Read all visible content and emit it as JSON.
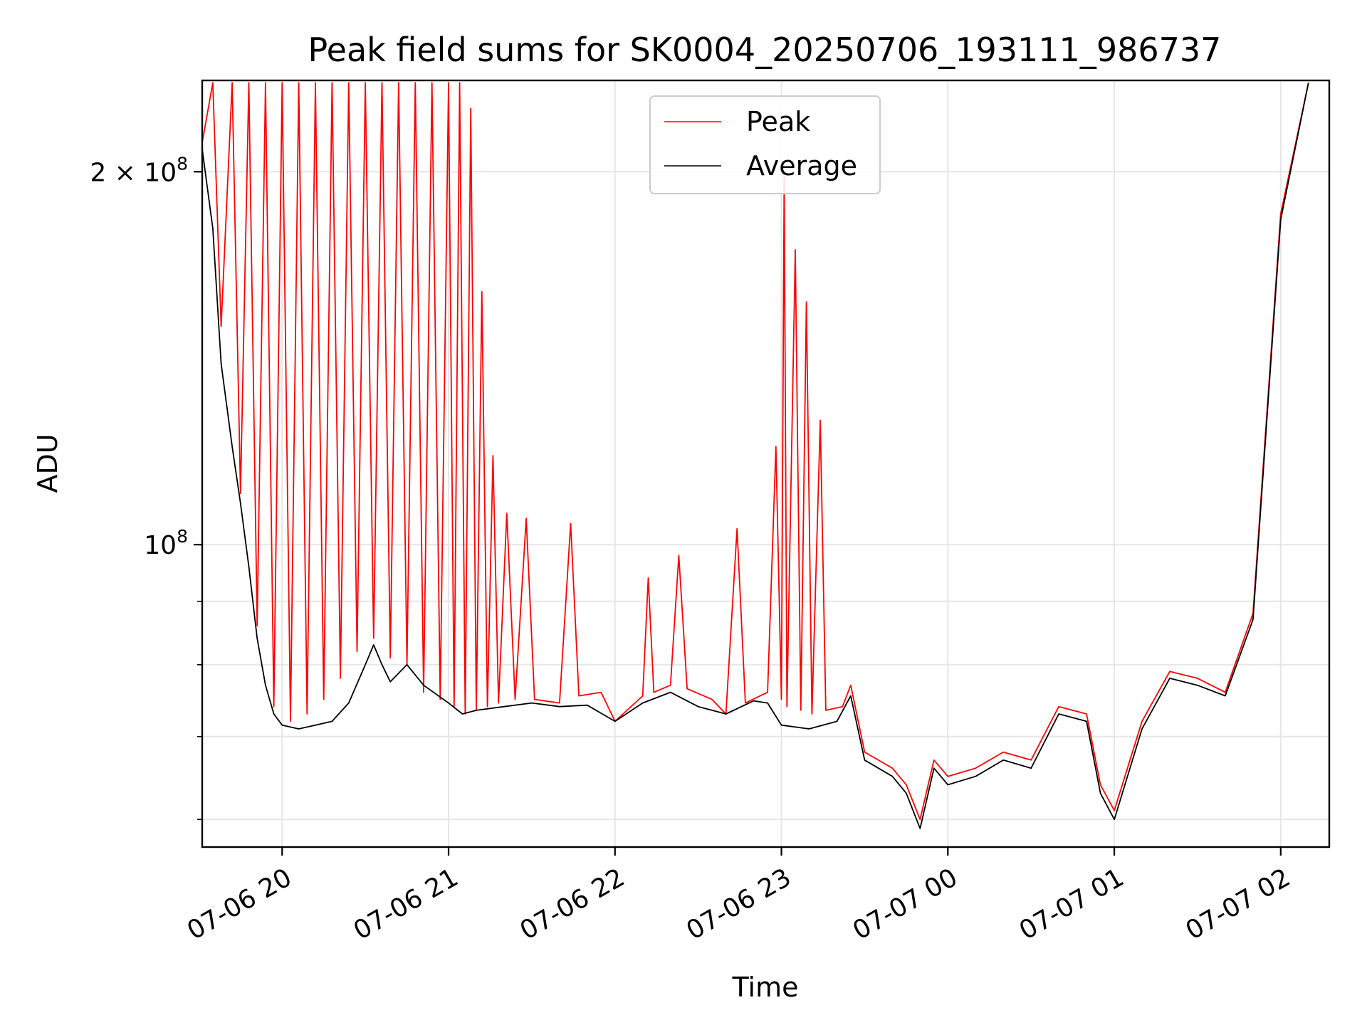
{
  "chart_data": {
    "type": "line",
    "title": "Peak field sums for SK0004_20250706_193111_986737",
    "xlabel": "Time",
    "ylabel": "ADU",
    "y_scale": "log",
    "ylim": [
      57000000,
      237000000
    ],
    "xlim": [
      "2025-07-06 19:31:11",
      "2025-07-07 02:17:30"
    ],
    "grid": true,
    "legend_position": "upper center",
    "x_ticks": [
      {
        "t": "2025-07-06 20:00",
        "label": "07-06 20"
      },
      {
        "t": "2025-07-06 21:00",
        "label": "07-06 21"
      },
      {
        "t": "2025-07-06 22:00",
        "label": "07-06 22"
      },
      {
        "t": "2025-07-06 23:00",
        "label": "07-06 23"
      },
      {
        "t": "2025-07-07 00:00",
        "label": "07-07 00"
      },
      {
        "t": "2025-07-07 01:00",
        "label": "07-07 01"
      },
      {
        "t": "2025-07-07 02:00",
        "label": "07-07 02"
      }
    ],
    "y_major_ticks": [
      {
        "value": 100000000,
        "base": "10",
        "exp": "8"
      },
      {
        "value": 200000000,
        "base": "2 × 10",
        "exp": "8"
      }
    ],
    "y_minor_ticks": [
      60000000,
      70000000,
      80000000,
      90000000
    ],
    "series": [
      {
        "name": "Peak",
        "color": "#ff0000",
        "points": [
          [
            "2025-07-06 19:31",
            210000000
          ],
          [
            "2025-07-06 19:35",
            236000000
          ],
          [
            "2025-07-06 19:38",
            150000000
          ],
          [
            "2025-07-06 19:42",
            236000000
          ],
          [
            "2025-07-06 19:45",
            110000000
          ],
          [
            "2025-07-06 19:48",
            236000000
          ],
          [
            "2025-07-06 19:51",
            86000000
          ],
          [
            "2025-07-06 19:54",
            236000000
          ],
          [
            "2025-07-06 19:57",
            74000000
          ],
          [
            "2025-07-06 20:00",
            236000000
          ],
          [
            "2025-07-06 20:03",
            72000000
          ],
          [
            "2025-07-06 20:06",
            236000000
          ],
          [
            "2025-07-06 20:09",
            73000000
          ],
          [
            "2025-07-06 20:12",
            236000000
          ],
          [
            "2025-07-06 20:15",
            75000000
          ],
          [
            "2025-07-06 20:18",
            236000000
          ],
          [
            "2025-07-06 20:21",
            78000000
          ],
          [
            "2025-07-06 20:24",
            236000000
          ],
          [
            "2025-07-06 20:27",
            82000000
          ],
          [
            "2025-07-06 20:30",
            236000000
          ],
          [
            "2025-07-06 20:33",
            84000000
          ],
          [
            "2025-07-06 20:36",
            236000000
          ],
          [
            "2025-07-06 20:39",
            81000000
          ],
          [
            "2025-07-06 20:42",
            236000000
          ],
          [
            "2025-07-06 20:45",
            80000000
          ],
          [
            "2025-07-06 20:48",
            236000000
          ],
          [
            "2025-07-06 20:51",
            76000000
          ],
          [
            "2025-07-06 20:54",
            236000000
          ],
          [
            "2025-07-06 20:57",
            75000000
          ],
          [
            "2025-07-06 21:00",
            236000000
          ],
          [
            "2025-07-06 21:02",
            74000000
          ],
          [
            "2025-07-06 21:04",
            236000000
          ],
          [
            "2025-07-06 21:06",
            73000000
          ],
          [
            "2025-07-06 21:08",
            225000000
          ],
          [
            "2025-07-06 21:10",
            73500000
          ],
          [
            "2025-07-06 21:12",
            160000000
          ],
          [
            "2025-07-06 21:14",
            74000000
          ],
          [
            "2025-07-06 21:16",
            118000000
          ],
          [
            "2025-07-06 21:18",
            74500000
          ],
          [
            "2025-07-06 21:21",
            106000000
          ],
          [
            "2025-07-06 21:24",
            75000000
          ],
          [
            "2025-07-06 21:28",
            105000000
          ],
          [
            "2025-07-06 21:31",
            75000000
          ],
          [
            "2025-07-06 21:40",
            74500000
          ],
          [
            "2025-07-06 21:44",
            104000000
          ],
          [
            "2025-07-06 21:47",
            75500000
          ],
          [
            "2025-07-06 21:55",
            76000000
          ],
          [
            "2025-07-06 22:00",
            72000000
          ],
          [
            "2025-07-06 22:10",
            75500000
          ],
          [
            "2025-07-06 22:12",
            94000000
          ],
          [
            "2025-07-06 22:14",
            76000000
          ],
          [
            "2025-07-06 22:20",
            77000000
          ],
          [
            "2025-07-06 22:23",
            98000000
          ],
          [
            "2025-07-06 22:26",
            76500000
          ],
          [
            "2025-07-06 22:35",
            75000000
          ],
          [
            "2025-07-06 22:40",
            73000000
          ],
          [
            "2025-07-06 22:44",
            103000000
          ],
          [
            "2025-07-06 22:47",
            74500000
          ],
          [
            "2025-07-06 22:55",
            76000000
          ],
          [
            "2025-07-06 22:58",
            120000000
          ],
          [
            "2025-07-06 23:00",
            75000000
          ],
          [
            "2025-07-06 23:01",
            198000000
          ],
          [
            "2025-07-06 23:02",
            74000000
          ],
          [
            "2025-07-06 23:05",
            173000000
          ],
          [
            "2025-07-06 23:07",
            73500000
          ],
          [
            "2025-07-06 23:09",
            157000000
          ],
          [
            "2025-07-06 23:11",
            73000000
          ],
          [
            "2025-07-06 23:14",
            126000000
          ],
          [
            "2025-07-06 23:16",
            73500000
          ],
          [
            "2025-07-06 23:22",
            74000000
          ],
          [
            "2025-07-06 23:25",
            77000000
          ],
          [
            "2025-07-06 23:30",
            68000000
          ],
          [
            "2025-07-06 23:40",
            66000000
          ],
          [
            "2025-07-06 23:45",
            64000000
          ],
          [
            "2025-07-06 23:50",
            60000000
          ],
          [
            "2025-07-06 23:55",
            67000000
          ],
          [
            "2025-07-07 00:00",
            65000000
          ],
          [
            "2025-07-07 00:10",
            66000000
          ],
          [
            "2025-07-07 00:20",
            68000000
          ],
          [
            "2025-07-07 00:30",
            67000000
          ],
          [
            "2025-07-07 00:40",
            74000000
          ],
          [
            "2025-07-07 00:50",
            73000000
          ],
          [
            "2025-07-07 00:55",
            64000000
          ],
          [
            "2025-07-07 01:00",
            61000000
          ],
          [
            "2025-07-07 01:10",
            72000000
          ],
          [
            "2025-07-07 01:20",
            79000000
          ],
          [
            "2025-07-07 01:30",
            78000000
          ],
          [
            "2025-07-07 01:40",
            76000000
          ],
          [
            "2025-07-07 01:50",
            88000000
          ],
          [
            "2025-07-07 02:00",
            185000000
          ],
          [
            "2025-07-07 02:10",
            236000000
          ]
        ]
      },
      {
        "name": "Average",
        "color": "#000000",
        "points": [
          [
            "2025-07-06 19:31",
            210000000
          ],
          [
            "2025-07-06 19:35",
            180000000
          ],
          [
            "2025-07-06 19:38",
            140000000
          ],
          [
            "2025-07-06 19:42",
            120000000
          ],
          [
            "2025-07-06 19:45",
            108000000
          ],
          [
            "2025-07-06 19:48",
            96000000
          ],
          [
            "2025-07-06 19:51",
            84000000
          ],
          [
            "2025-07-06 19:54",
            77000000
          ],
          [
            "2025-07-06 19:57",
            73000000
          ],
          [
            "2025-07-06 20:00",
            71500000
          ],
          [
            "2025-07-06 20:06",
            71000000
          ],
          [
            "2025-07-06 20:12",
            71500000
          ],
          [
            "2025-07-06 20:18",
            72000000
          ],
          [
            "2025-07-06 20:24",
            74500000
          ],
          [
            "2025-07-06 20:30",
            80000000
          ],
          [
            "2025-07-06 20:33",
            83000000
          ],
          [
            "2025-07-06 20:36",
            80000000
          ],
          [
            "2025-07-06 20:39",
            77500000
          ],
          [
            "2025-07-06 20:45",
            80000000
          ],
          [
            "2025-07-06 20:51",
            77000000
          ],
          [
            "2025-07-06 21:00",
            74500000
          ],
          [
            "2025-07-06 21:05",
            73000000
          ],
          [
            "2025-07-06 21:10",
            73500000
          ],
          [
            "2025-07-06 21:20",
            74000000
          ],
          [
            "2025-07-06 21:30",
            74500000
          ],
          [
            "2025-07-06 21:40",
            74000000
          ],
          [
            "2025-07-06 21:50",
            74200000
          ],
          [
            "2025-07-06 22:00",
            72000000
          ],
          [
            "2025-07-06 22:10",
            74500000
          ],
          [
            "2025-07-06 22:20",
            76000000
          ],
          [
            "2025-07-06 22:30",
            74000000
          ],
          [
            "2025-07-06 22:40",
            73000000
          ],
          [
            "2025-07-06 22:50",
            74800000
          ],
          [
            "2025-07-06 22:55",
            74500000
          ],
          [
            "2025-07-06 23:00",
            71500000
          ],
          [
            "2025-07-06 23:10",
            71000000
          ],
          [
            "2025-07-06 23:20",
            72000000
          ],
          [
            "2025-07-06 23:25",
            75500000
          ],
          [
            "2025-07-06 23:30",
            67000000
          ],
          [
            "2025-07-06 23:40",
            65000000
          ],
          [
            "2025-07-06 23:45",
            63000000
          ],
          [
            "2025-07-06 23:50",
            59000000
          ],
          [
            "2025-07-06 23:55",
            66000000
          ],
          [
            "2025-07-07 00:00",
            64000000
          ],
          [
            "2025-07-07 00:10",
            65000000
          ],
          [
            "2025-07-07 00:20",
            67000000
          ],
          [
            "2025-07-07 00:30",
            66000000
          ],
          [
            "2025-07-07 00:40",
            73000000
          ],
          [
            "2025-07-07 00:50",
            72000000
          ],
          [
            "2025-07-07 00:55",
            63000000
          ],
          [
            "2025-07-07 01:00",
            60000000
          ],
          [
            "2025-07-07 01:10",
            71000000
          ],
          [
            "2025-07-07 01:20",
            78000000
          ],
          [
            "2025-07-07 01:30",
            77000000
          ],
          [
            "2025-07-07 01:40",
            75500000
          ],
          [
            "2025-07-07 01:50",
            87000000
          ],
          [
            "2025-07-07 02:00",
            183000000
          ],
          [
            "2025-07-07 02:10",
            236000000
          ]
        ]
      }
    ]
  }
}
